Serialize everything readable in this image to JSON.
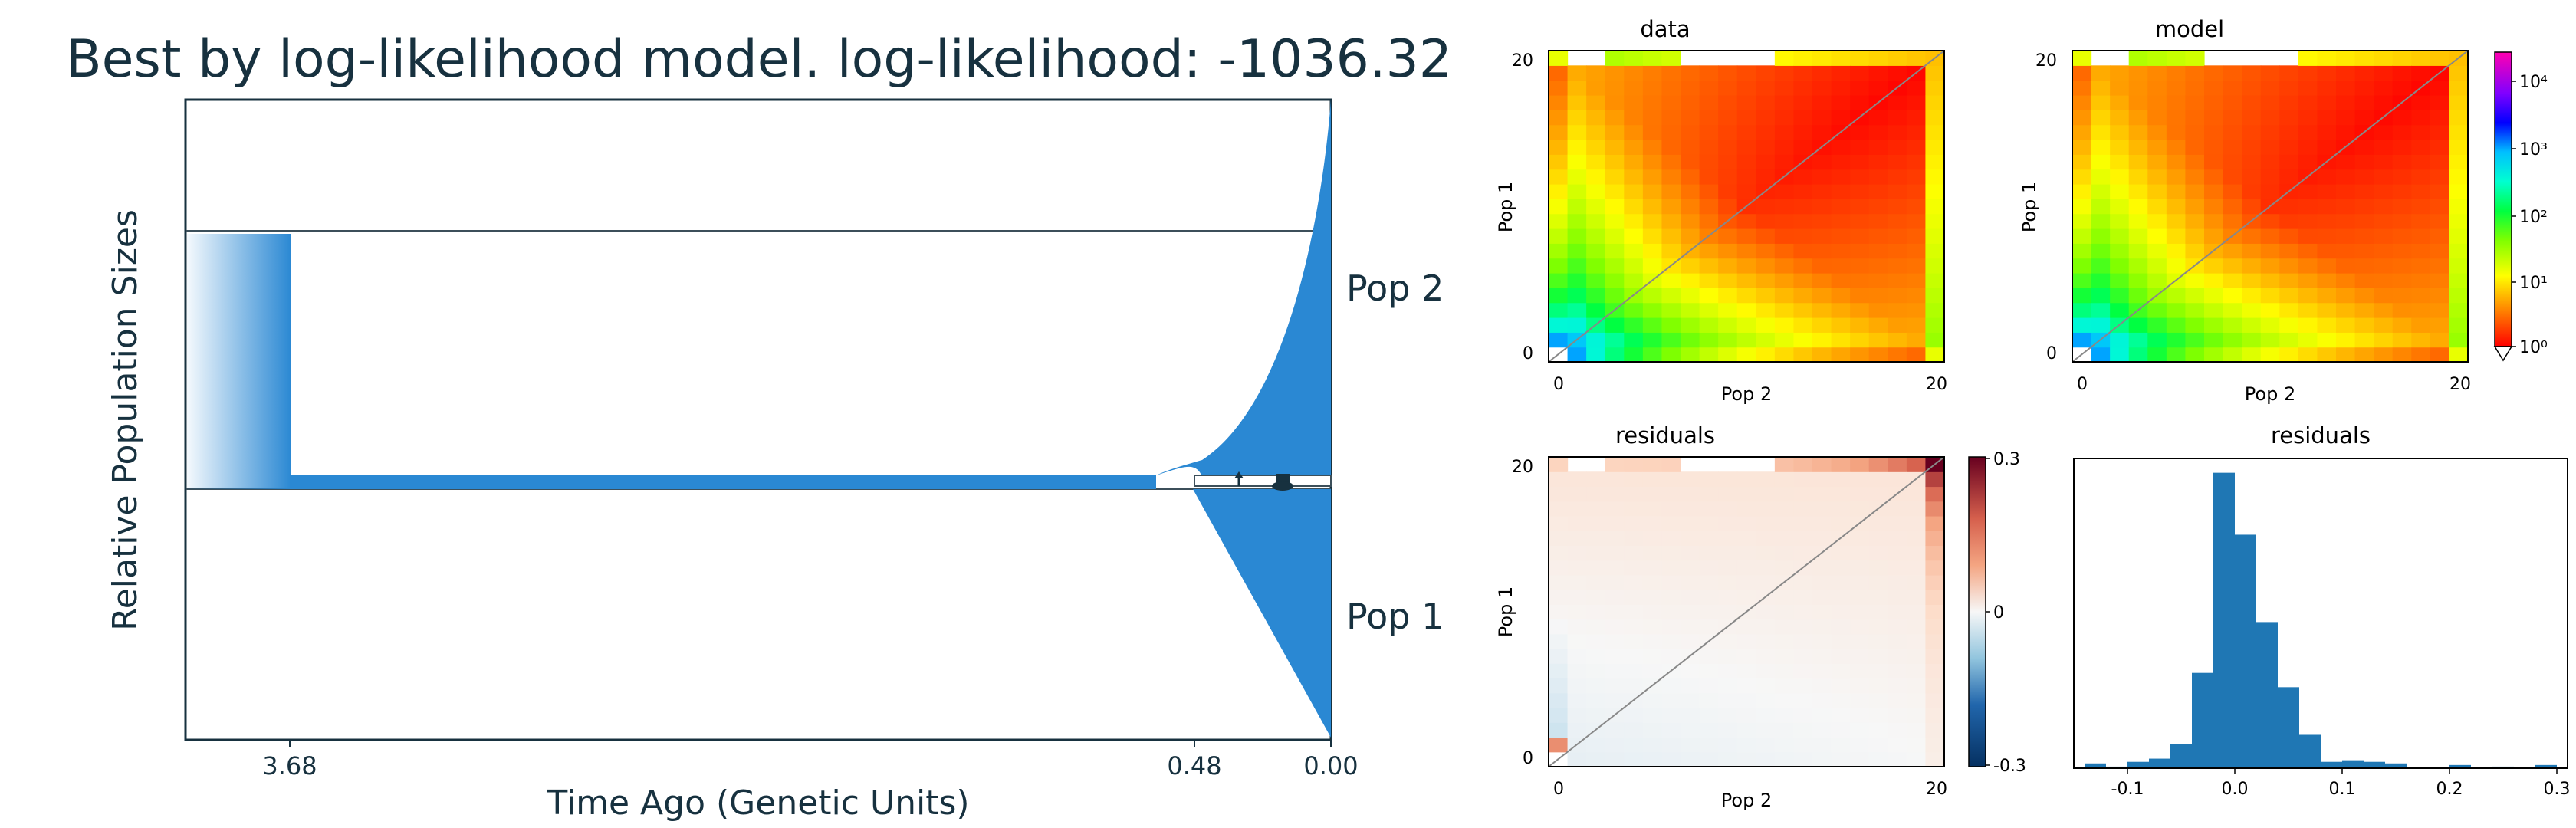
{
  "chart_data": [
    {
      "type": "demographic-model",
      "title": "Best by log-likelihood model. log-likelihood: -1036.32",
      "xlabel": "Time Ago (Genetic Units)",
      "ylabel": "Relative Population Sizes",
      "x_ticks": [
        "3.68",
        "0.48",
        "0.00"
      ],
      "populations": [
        "Pop 2",
        "Pop 1"
      ],
      "color": "#2a88d3"
    },
    {
      "type": "heatmap",
      "title": "data",
      "xlabel": "Pop 2",
      "ylabel": "Pop 1",
      "x_ticks": [
        "0",
        "20"
      ],
      "y_ticks": [
        "0",
        "20"
      ]
    },
    {
      "type": "heatmap",
      "title": "model",
      "xlabel": "Pop 2",
      "ylabel": "Pop 1",
      "x_ticks": [
        "0",
        "20"
      ],
      "y_ticks": [
        "0",
        "20"
      ],
      "colorbar": {
        "scale": "log",
        "ticks": [
          "10⁴",
          "10³",
          "10²",
          "10¹",
          "10⁰"
        ]
      }
    },
    {
      "type": "heatmap",
      "title": "residuals",
      "xlabel": "Pop 2",
      "ylabel": "Pop 1",
      "x_ticks": [
        "0",
        "20"
      ],
      "y_ticks": [
        "0",
        "20"
      ],
      "colorbar": {
        "ticks": [
          "0.3",
          "0",
          "-0.3"
        ],
        "range": [
          -0.3,
          0.3
        ]
      }
    },
    {
      "type": "bar",
      "title": "residuals",
      "x_ticks": [
        "-0.1",
        "0.0",
        "0.1",
        "0.2",
        "0.3"
      ],
      "xlim": [
        -0.15,
        0.31
      ],
      "bins": [
        {
          "x": -0.13,
          "count": 3
        },
        {
          "x": -0.11,
          "count": 1
        },
        {
          "x": -0.09,
          "count": 4
        },
        {
          "x": -0.07,
          "count": 6
        },
        {
          "x": -0.05,
          "count": 15
        },
        {
          "x": -0.03,
          "count": 60
        },
        {
          "x": -0.01,
          "count": 186
        },
        {
          "x": 0.01,
          "count": 147
        },
        {
          "x": 0.03,
          "count": 92
        },
        {
          "x": 0.05,
          "count": 51
        },
        {
          "x": 0.07,
          "count": 21
        },
        {
          "x": 0.09,
          "count": 4
        },
        {
          "x": 0.11,
          "count": 5
        },
        {
          "x": 0.13,
          "count": 4
        },
        {
          "x": 0.15,
          "count": 3
        },
        {
          "x": 0.17,
          "count": 0
        },
        {
          "x": 0.19,
          "count": 0
        },
        {
          "x": 0.21,
          "count": 2
        },
        {
          "x": 0.23,
          "count": 0
        },
        {
          "x": 0.25,
          "count": 1
        },
        {
          "x": 0.27,
          "count": 0
        },
        {
          "x": 0.29,
          "count": 2
        }
      ]
    }
  ]
}
